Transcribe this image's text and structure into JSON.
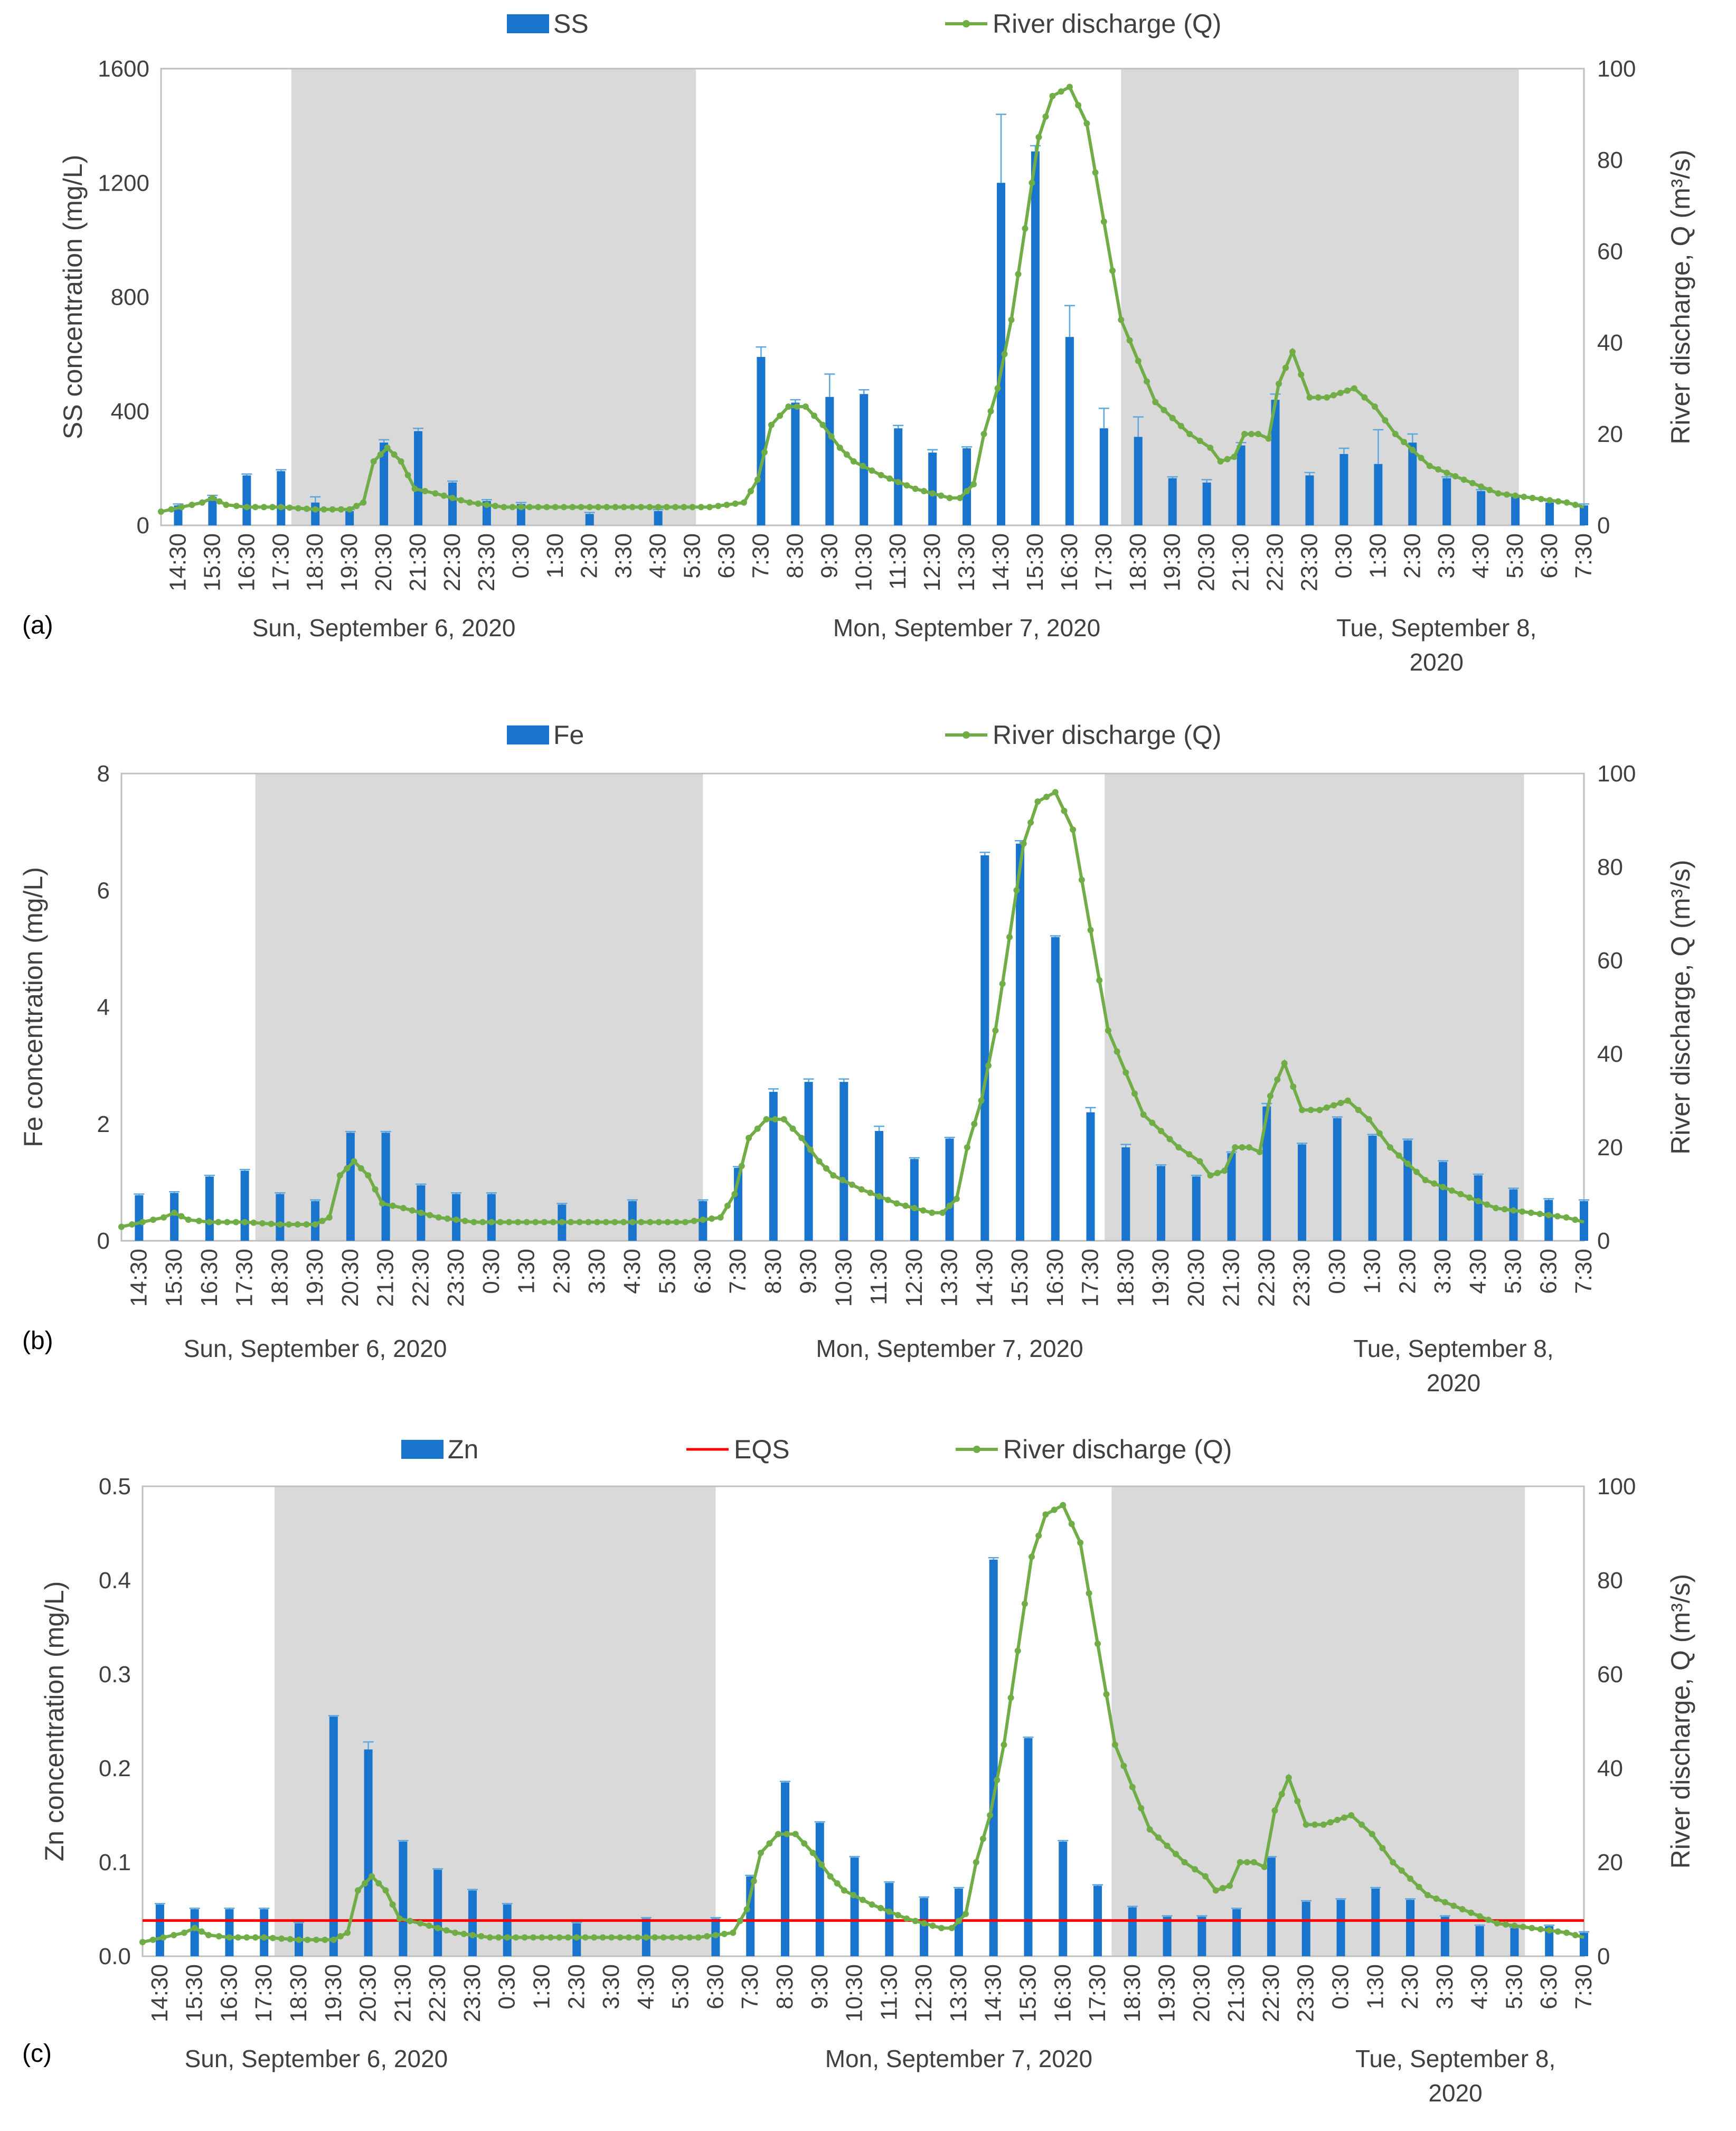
{
  "colors": {
    "bar": "#1874cd",
    "discharge": "#70ad47",
    "eqs": "#ff0000",
    "night_band": "#d9d9d9",
    "axis": "#bfbfbf",
    "text": "#404040"
  },
  "chart_data": [
    {
      "type": "bar",
      "panel_label": "(a)",
      "legend": [
        "SS",
        "River discharge (Q)"
      ],
      "ylabel_left": "SS concentration (mg/L)",
      "ylabel_right": "River discharge, Q (m³/s)",
      "ylim_left": [
        0,
        1600
      ],
      "yticks_left": [
        "0",
        "400",
        "800",
        "1200",
        "1600"
      ],
      "ylim_right": [
        0,
        100
      ],
      "yticks_right": [
        "0",
        "20",
        "40",
        "60",
        "80",
        "100"
      ],
      "x_ticks": [
        "14:30",
        "15:30",
        "16:30",
        "17:30",
        "18:30",
        "19:30",
        "20:30",
        "21:30",
        "22:30",
        "23:30",
        "0:30",
        "1:30",
        "2:30",
        "3:30",
        "4:30",
        "5:30",
        "6:30",
        "7:30",
        "8:30",
        "9:30",
        "10:30",
        "11:30",
        "12:30",
        "13:30",
        "14:30",
        "15:30",
        "16:30",
        "17:30",
        "18:30",
        "19:30",
        "20:30",
        "21:30",
        "22:30",
        "23:30",
        "0:30",
        "1:30",
        "2:30",
        "3:30",
        "4:30",
        "5:30",
        "6:30",
        "7:30"
      ],
      "x_range_hours": [
        14.0,
        55.5
      ],
      "night_shading": [
        [
          17.8,
          29.6
        ],
        [
          42.0,
          53.6
        ]
      ],
      "date_labels": [
        {
          "line1": "Sun, September 6, 2020",
          "line2": "",
          "at_hour": 20.5
        },
        {
          "line1": "Mon, September 7, 2020",
          "line2": "",
          "at_hour": 37.5
        },
        {
          "line1": "Tue, September 8,",
          "line2": "2020",
          "at_hour": 51.2
        }
      ],
      "bars": {
        "name": "SS",
        "x_hours": [
          14.5,
          15.5,
          16.5,
          17.5,
          18.5,
          19.5,
          20.5,
          21.5,
          22.5,
          23.5,
          24.5,
          26.5,
          28.5,
          31.5,
          32.5,
          33.5,
          34.5,
          35.5,
          36.5,
          37.5,
          38.5,
          39.5,
          40.5,
          41.5,
          42.5,
          43.5,
          44.5,
          45.5,
          46.5,
          47.5,
          48.5,
          49.5,
          50.5,
          51.5,
          52.5,
          53.5,
          54.5,
          55.5
        ],
        "values": [
          70,
          100,
          175,
          190,
          80,
          50,
          290,
          330,
          150,
          85,
          75,
          40,
          50,
          590,
          430,
          450,
          460,
          340,
          255,
          270,
          1200,
          1310,
          660,
          340,
          310,
          165,
          150,
          280,
          440,
          175,
          250,
          215,
          290,
          165,
          120,
          100,
          80,
          70
        ],
        "error": [
          5,
          5,
          5,
          5,
          20,
          5,
          10,
          10,
          5,
          5,
          5,
          5,
          5,
          35,
          10,
          80,
          15,
          10,
          10,
          5,
          240,
          20,
          110,
          70,
          70,
          5,
          10,
          10,
          20,
          10,
          20,
          120,
          30,
          5,
          5,
          5,
          5,
          5
        ]
      },
      "discharge": {
        "name": "River discharge (Q)",
        "x_hours": [
          14.0,
          14.6,
          15.2,
          15.5,
          15.9,
          16.5,
          17.5,
          18.5,
          19.5,
          19.9,
          20.2,
          20.6,
          21.0,
          21.4,
          22.0,
          23.0,
          24.0,
          26.0,
          28.0,
          30.0,
          31.0,
          31.4,
          31.8,
          32.3,
          32.8,
          33.3,
          33.8,
          34.2,
          35.0,
          36.0,
          37.0,
          37.3,
          37.7,
          38.0,
          38.4,
          38.8,
          39.2,
          39.6,
          40.0,
          40.5,
          41.0,
          42.0,
          43.0,
          44.0,
          44.6,
          44.9,
          45.3,
          45.6,
          46.0,
          46.3,
          46.6,
          47.0,
          47.5,
          48.0,
          48.4,
          48.8,
          49.4,
          50.0,
          51.0,
          52.0,
          53.0,
          54.0,
          55.0,
          55.5
        ],
        "values": [
          3,
          4,
          5,
          6,
          4.5,
          4,
          4,
          3.5,
          3.5,
          5,
          14,
          17,
          14,
          8,
          7,
          5,
          4,
          4,
          4,
          4,
          5,
          10,
          22,
          26,
          26,
          22,
          17,
          14,
          11,
          8,
          6,
          6,
          9,
          20,
          30,
          45,
          65,
          85,
          94,
          96,
          88,
          45,
          27,
          20,
          17,
          14,
          15,
          20,
          20,
          19,
          31,
          38,
          28,
          28,
          29,
          30,
          26,
          20,
          13,
          10,
          7,
          6,
          5,
          4
        ]
      }
    },
    {
      "type": "bar",
      "panel_label": "(b)",
      "legend": [
        "Fe",
        "River discharge (Q)"
      ],
      "ylabel_left": "Fe concentration (mg/L)",
      "ylabel_right": "River discharge, Q (m³/s)",
      "ylim_left": [
        0,
        8
      ],
      "yticks_left": [
        "0",
        "2",
        "4",
        "6",
        "8"
      ],
      "ylim_right": [
        0,
        100
      ],
      "yticks_right": [
        "0",
        "20",
        "40",
        "60",
        "80",
        "100"
      ],
      "x_ticks": [
        "14:30",
        "15:30",
        "16:30",
        "17:30",
        "18:30",
        "19:30",
        "20:30",
        "21:30",
        "22:30",
        "23:30",
        "0:30",
        "1:30",
        "2:30",
        "3:30",
        "4:30",
        "5:30",
        "6:30",
        "7:30",
        "8:30",
        "9:30",
        "10:30",
        "11:30",
        "12:30",
        "13:30",
        "14:30",
        "15:30",
        "16:30",
        "17:30",
        "18:30",
        "19:30",
        "20:30",
        "21:30",
        "22:30",
        "23:30",
        "0:30",
        "1:30",
        "2:30",
        "3:30",
        "4:30",
        "5:30",
        "6:30",
        "7:30"
      ],
      "x_range_hours": [
        14.0,
        55.5
      ],
      "night_shading": [
        [
          17.8,
          30.5
        ],
        [
          41.9,
          53.8
        ]
      ],
      "date_labels": [
        {
          "line1": "Sun, September 6, 2020",
          "line2": "",
          "at_hour": 19.5
        },
        {
          "line1": "Mon, September 7, 2020",
          "line2": "",
          "at_hour": 37.5
        },
        {
          "line1": "Tue, September 8,",
          "line2": "2020",
          "at_hour": 51.8
        }
      ],
      "bars": {
        "name": "Fe",
        "x_hours": [
          14.5,
          15.5,
          16.5,
          17.5,
          18.5,
          19.5,
          20.5,
          21.5,
          22.5,
          23.5,
          24.5,
          26.5,
          28.5,
          30.5,
          31.5,
          32.5,
          33.5,
          34.5,
          35.5,
          36.5,
          37.5,
          38.5,
          39.5,
          40.5,
          41.5,
          42.5,
          43.5,
          44.5,
          45.5,
          46.5,
          47.5,
          48.5,
          49.5,
          50.5,
          51.5,
          52.5,
          53.5,
          54.5,
          55.5
        ],
        "values": [
          0.78,
          0.82,
          1.1,
          1.2,
          0.8,
          0.68,
          1.85,
          1.85,
          0.95,
          0.8,
          0.8,
          0.62,
          0.68,
          0.68,
          1.25,
          2.55,
          2.72,
          2.72,
          1.88,
          1.4,
          1.75,
          6.6,
          6.8,
          5.2,
          2.2,
          1.6,
          1.28,
          1.1,
          1.5,
          2.3,
          1.65,
          2.1,
          1.8,
          1.72,
          1.35,
          1.12,
          0.88,
          0.7,
          0.68
        ],
        "error": [
          0.02,
          0.02,
          0.02,
          0.02,
          0.02,
          0.02,
          0.02,
          0.02,
          0.02,
          0.02,
          0.02,
          0.02,
          0.02,
          0.02,
          0.02,
          0.05,
          0.05,
          0.05,
          0.08,
          0.02,
          0.02,
          0.05,
          0.05,
          0.02,
          0.08,
          0.05,
          0.02,
          0.02,
          0.02,
          0.05,
          0.02,
          0.02,
          0.02,
          0.02,
          0.02,
          0.02,
          0.02,
          0.02,
          0.02
        ]
      },
      "discharge": {
        "name": "River discharge (Q)",
        "x_hours": [
          14.0,
          14.6,
          15.2,
          15.5,
          15.9,
          16.5,
          17.5,
          18.5,
          19.5,
          19.9,
          20.2,
          20.6,
          21.0,
          21.4,
          22.0,
          23.0,
          24.0,
          26.0,
          28.0,
          30.0,
          31.0,
          31.4,
          31.8,
          32.3,
          32.8,
          33.3,
          33.8,
          34.2,
          35.0,
          36.0,
          37.0,
          37.3,
          37.7,
          38.0,
          38.4,
          38.8,
          39.2,
          39.6,
          40.0,
          40.5,
          41.0,
          42.0,
          43.0,
          44.0,
          44.6,
          44.9,
          45.3,
          45.6,
          46.0,
          46.3,
          46.6,
          47.0,
          47.5,
          48.0,
          48.4,
          48.8,
          49.4,
          50.0,
          51.0,
          52.0,
          53.0,
          54.0,
          55.0,
          55.5
        ],
        "values": [
          3,
          4,
          5,
          6,
          4.5,
          4,
          4,
          3.5,
          3.5,
          5,
          14,
          17,
          14,
          8,
          7,
          5,
          4,
          4,
          4,
          4,
          5,
          10,
          22,
          26,
          26,
          22,
          17,
          14,
          11,
          8,
          6,
          6,
          9,
          20,
          30,
          45,
          65,
          85,
          94,
          96,
          88,
          45,
          27,
          20,
          17,
          14,
          15,
          20,
          20,
          19,
          31,
          38,
          28,
          28,
          29,
          30,
          26,
          20,
          13,
          10,
          7,
          6,
          5,
          4
        ]
      }
    },
    {
      "type": "bar",
      "panel_label": "(c)",
      "legend": [
        "Zn",
        "EQS",
        "River discharge (Q)"
      ],
      "ylabel_left": "Zn concentration (mg/L)",
      "ylabel_right": "River discharge, Q (m³/s)",
      "ylim_left": [
        0,
        0.5
      ],
      "yticks_left": [
        "0.0",
        "0.1",
        "0.2",
        "0.3",
        "0.4",
        "0.5"
      ],
      "ylim_right": [
        0,
        100
      ],
      "yticks_right": [
        "0",
        "20",
        "40",
        "60",
        "80",
        "100"
      ],
      "x_ticks": [
        "14:30",
        "15:30",
        "16:30",
        "17:30",
        "18:30",
        "19:30",
        "20:30",
        "21:30",
        "22:30",
        "23:30",
        "0:30",
        "1:30",
        "2:30",
        "3:30",
        "4:30",
        "5:30",
        "6:30",
        "7:30",
        "8:30",
        "9:30",
        "10:30",
        "11:30",
        "12:30",
        "13:30",
        "14:30",
        "15:30",
        "16:30",
        "17:30",
        "18:30",
        "19:30",
        "20:30",
        "21:30",
        "22:30",
        "23:30",
        "0:30",
        "1:30",
        "2:30",
        "3:30",
        "4:30",
        "5:30",
        "6:30",
        "7:30"
      ],
      "x_range_hours": [
        14.0,
        55.5
      ],
      "night_shading": [
        [
          17.8,
          30.5
        ],
        [
          41.9,
          53.8
        ]
      ],
      "eqs_value": 0.038,
      "date_labels": [
        {
          "line1": "Sun, September 6, 2020",
          "line2": "",
          "at_hour": 19.0
        },
        {
          "line1": "Mon, September 7, 2020",
          "line2": "",
          "at_hour": 37.5
        },
        {
          "line1": "Tue, September 8,",
          "line2": "2020",
          "at_hour": 51.8
        }
      ],
      "bars": {
        "name": "Zn",
        "x_hours": [
          14.5,
          15.5,
          16.5,
          17.5,
          18.5,
          19.5,
          20.5,
          21.5,
          22.5,
          23.5,
          24.5,
          26.5,
          28.5,
          30.5,
          31.5,
          32.5,
          33.5,
          34.5,
          35.5,
          36.5,
          37.5,
          38.5,
          39.5,
          40.5,
          41.5,
          42.5,
          43.5,
          44.5,
          45.5,
          46.5,
          47.5,
          48.5,
          49.5,
          50.5,
          51.5,
          52.5,
          53.5,
          54.5,
          55.5
        ],
        "values": [
          0.055,
          0.05,
          0.05,
          0.05,
          0.035,
          0.255,
          0.22,
          0.122,
          0.092,
          0.07,
          0.055,
          0.035,
          0.04,
          0.04,
          0.085,
          0.185,
          0.142,
          0.105,
          0.078,
          0.062,
          0.072,
          0.422,
          0.232,
          0.122,
          0.075,
          0.052,
          0.042,
          0.042,
          0.05,
          0.105,
          0.058,
          0.06,
          0.072,
          0.06,
          0.042,
          0.032,
          0.03,
          0.032,
          0.025
        ],
        "error": [
          0.001,
          0.001,
          0.001,
          0.001,
          0.001,
          0.001,
          0.008,
          0.001,
          0.001,
          0.001,
          0.001,
          0.001,
          0.001,
          0.001,
          0.001,
          0.001,
          0.001,
          0.001,
          0.001,
          0.001,
          0.001,
          0.002,
          0.001,
          0.001,
          0.001,
          0.001,
          0.001,
          0.001,
          0.001,
          0.001,
          0.001,
          0.001,
          0.001,
          0.001,
          0.001,
          0.001,
          0.001,
          0.001,
          0.001
        ]
      },
      "discharge": {
        "name": "River discharge (Q)",
        "x_hours": [
          14.0,
          14.6,
          15.2,
          15.5,
          15.9,
          16.5,
          17.5,
          18.5,
          19.5,
          19.9,
          20.2,
          20.6,
          21.0,
          21.4,
          22.0,
          23.0,
          24.0,
          26.0,
          28.0,
          30.0,
          31.0,
          31.4,
          31.8,
          32.3,
          32.8,
          33.3,
          33.8,
          34.2,
          35.0,
          36.0,
          37.0,
          37.3,
          37.7,
          38.0,
          38.4,
          38.8,
          39.2,
          39.6,
          40.0,
          40.5,
          41.0,
          42.0,
          43.0,
          44.0,
          44.6,
          44.9,
          45.3,
          45.6,
          46.0,
          46.3,
          46.6,
          47.0,
          47.5,
          48.0,
          48.4,
          48.8,
          49.4,
          50.0,
          51.0,
          52.0,
          53.0,
          54.0,
          55.0,
          55.5
        ],
        "values": [
          3,
          4,
          5,
          6,
          4.5,
          4,
          4,
          3.5,
          3.5,
          5,
          14,
          17,
          14,
          8,
          7,
          5,
          4,
          4,
          4,
          4,
          5,
          10,
          22,
          26,
          26,
          22,
          17,
          14,
          11,
          8,
          6,
          6,
          9,
          20,
          30,
          45,
          65,
          85,
          94,
          96,
          88,
          45,
          27,
          20,
          17,
          14,
          15,
          20,
          20,
          19,
          31,
          38,
          28,
          28,
          29,
          30,
          26,
          20,
          13,
          10,
          7,
          6,
          5,
          4
        ]
      }
    }
  ]
}
